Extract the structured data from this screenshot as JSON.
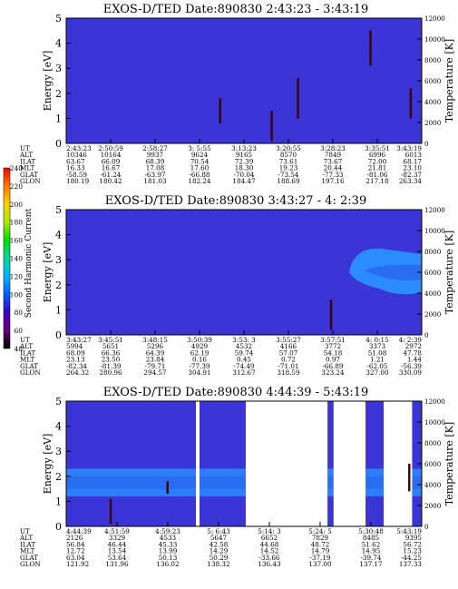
{
  "colors": {
    "background": "#3b34d6",
    "band_deep": "#2a6cf2",
    "band_light": "#2b8cff",
    "event_dark": "#3a0006",
    "frame": "#000000",
    "colorbar_stops": [
      "#000000",
      "#6b007a",
      "#3b00c8",
      "#0060ff",
      "#00b7ff",
      "#00d9a0",
      "#00e000",
      "#b0e800",
      "#ffd000",
      "#ff7a00",
      "#ff0000"
    ]
  },
  "colorbar": {
    "label": "Second Harmonic Current",
    "ticks": [
      "40",
      "60",
      "80",
      "100",
      "120",
      "140",
      "160",
      "180",
      "200",
      "220",
      "240"
    ]
  },
  "panel_labels": {
    "ylabel_left": "Energy [eV]",
    "ylabel_right": "Temperature [K]",
    "row_labels": [
      "UT",
      "ALT",
      "ILAT",
      "MLT",
      "GLAT",
      "GLON"
    ]
  },
  "chart_data": [
    {
      "type": "heatmap",
      "title": "EXOS-D/TED   Date:890830  2:43:23 - 3:43:19",
      "ylabel": "Energy [eV]",
      "y2label": "Temperature [K]",
      "ylim": [
        0,
        5
      ],
      "y2lim": [
        0,
        12000
      ],
      "yticks": [
        "0",
        "1",
        "2",
        "3",
        "4",
        "5"
      ],
      "y2ticks": [
        "0",
        "2000",
        "4000",
        "6000",
        "8000",
        "10000",
        "12000"
      ],
      "columns": [
        [
          "2:43:23",
          "10346",
          "63.67",
          "16.33",
          "-58.59",
          "180.19"
        ],
        [
          "2:50:59",
          "10164",
          "66.09",
          "16.67",
          "-61.24",
          "180.42"
        ],
        [
          "2:58:27",
          "9937",
          "68.39",
          "17.08",
          "-63.97",
          "181.03"
        ],
        [
          "3: 5:55",
          "9624",
          "70.54",
          "17.60",
          "-66.88",
          "182.24"
        ],
        [
          "3:13:23",
          "9165",
          "72.39",
          "18.30",
          "-70.04",
          "184.47"
        ],
        [
          "3:20:55",
          "8570",
          "73.61",
          "19.23",
          "-73.54",
          "188.69"
        ],
        [
          "3:28:23",
          "7849",
          "73.67",
          "20.44",
          "-77.33",
          "197.16"
        ],
        [
          "3:35:51",
          "6996",
          "72.00",
          "21.81",
          "-81.06",
          "217.18"
        ],
        [
          "3:43:19",
          "6013",
          "68.17",
          "23.10",
          "-82.37",
          "263.34"
        ]
      ],
      "streaks": [
        {
          "t": 0.433,
          "e0": 0.8,
          "e1": 1.8
        },
        {
          "t": 0.652,
          "e0": 1.0,
          "e1": 2.6
        },
        {
          "t": 0.578,
          "e0": 0.1,
          "e1": 1.3
        },
        {
          "t": 0.856,
          "e0": 3.1,
          "e1": 4.5
        },
        {
          "t": 0.969,
          "e0": 1.0,
          "e1": 2.2
        }
      ]
    },
    {
      "type": "heatmap",
      "title": "EXOS-D/TED   Date:890830  3:43:27 - 4: 2:39",
      "ylabel": "Energy [eV]",
      "y2label": "Temperature [K]",
      "ylim": [
        0,
        5
      ],
      "y2lim": [
        0,
        12000
      ],
      "yticks": [
        "0",
        "1",
        "2",
        "3",
        "4",
        "5"
      ],
      "y2ticks": [
        "0",
        "2000",
        "4000",
        "6000",
        "8000",
        "10000",
        "12000"
      ],
      "columns": [
        [
          "3:43:27",
          "5994",
          "68.09",
          "23.13",
          "-82.34",
          "264.32"
        ],
        [
          "3:45:51",
          "5651",
          "66.36",
          "23.50",
          "-81.39",
          "280.96"
        ],
        [
          "3:48:15",
          "5296",
          "64.39",
          "23.84",
          "-79.71",
          "294.57"
        ],
        [
          "3:50:39",
          "4929",
          "62.19",
          "0.16",
          "-77.39",
          "304.91"
        ],
        [
          "3:53: 3",
          "4532",
          "59.74",
          "0.45",
          "-74.49",
          "312.67"
        ],
        [
          "3:55:27",
          "4166",
          "57.07",
          "0.72",
          "-71.01",
          "318.59"
        ],
        [
          "3:57:51",
          "3772",
          "54.18",
          "0.97",
          "-66.89",
          "323.24"
        ],
        [
          "4: 0:15",
          "3373",
          "51.08",
          "1.21",
          "-62.05",
          "327.00"
        ],
        [
          "4: 2:39",
          "2972",
          "47.78",
          "1.44",
          "-56.39",
          "330.09"
        ]
      ],
      "streaks": [
        {
          "t": 0.745,
          "e0": 0.2,
          "e1": 1.4
        }
      ]
    },
    {
      "type": "heatmap",
      "title": "EXOS-D/TED   Date:890830  4:44:39 - 5:43:19",
      "ylabel": "Energy [eV]",
      "y2label": "Temperature [K]",
      "ylim": [
        0,
        5
      ],
      "y2lim": [
        0,
        12000
      ],
      "yticks": [
        "0",
        "1",
        "2",
        "3",
        "4",
        "5"
      ],
      "y2ticks": [
        "0",
        "2000",
        "4000",
        "6000",
        "8000",
        "10000",
        "12000"
      ],
      "columns": [
        [
          "4:44:39",
          "2126",
          "56.84",
          "12.72",
          "63.04",
          "121.92"
        ],
        [
          "4:51:59",
          "3329",
          "46.44",
          "13.54",
          "53.64",
          "131.96"
        ],
        [
          "4:59:23",
          "4533",
          "45.33",
          "13.99",
          "50.13",
          "136.02"
        ],
        [
          "5: 6:43",
          "5647",
          "42.58",
          "14.29",
          "50.29",
          "138.32"
        ],
        [
          "5:14: 3",
          "6652",
          "44.68",
          "14.52",
          "-33.66",
          "136.43"
        ],
        [
          "5:24: 5",
          "7829",
          "48.72",
          "14.79",
          "-37.19",
          "137.00"
        ],
        [
          "5:30:48",
          "8485",
          "51.62",
          "14.95",
          "-39.74",
          "137.17"
        ],
        [
          "5:43:19",
          "9395",
          "56.72",
          "15.23",
          "-44.25",
          "137.33"
        ]
      ],
      "gaps": [
        {
          "t0": 0.365,
          "t1": 0.375
        },
        {
          "t0": 0.505,
          "t1": 0.735
        },
        {
          "t0": 0.752,
          "t1": 0.842
        },
        {
          "t0": 0.893,
          "t1": 0.973
        }
      ],
      "streaks": [
        {
          "t": 0.125,
          "e0": 0.1,
          "e1": 1.1
        },
        {
          "t": 0.285,
          "e0": 1.3,
          "e1": 1.8
        },
        {
          "t": 0.965,
          "e0": 1.4,
          "e1": 2.5
        }
      ]
    }
  ]
}
